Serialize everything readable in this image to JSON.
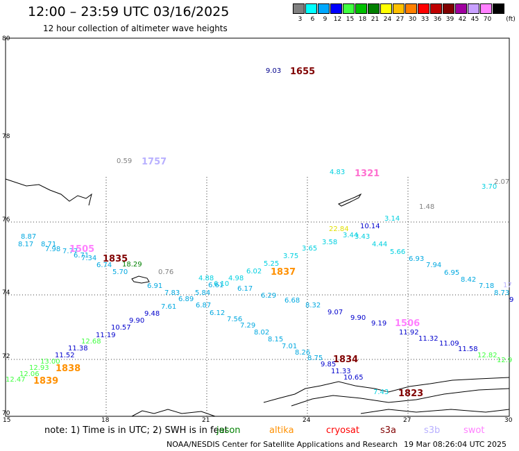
{
  "header": {
    "title": "12:00 – 23:59 UTC 03/16/2025",
    "subtitle": "12 hour collection of altimeter wave heights"
  },
  "legend": {
    "unit": "(ft)",
    "bins": [
      {
        "label": "3",
        "color": "#808080"
      },
      {
        "label": "6",
        "color": "#00ffff"
      },
      {
        "label": "9",
        "color": "#00a8ff"
      },
      {
        "label": "12",
        "color": "#0000ff"
      },
      {
        "label": "15",
        "color": "#40ff40"
      },
      {
        "label": "18",
        "color": "#00c000"
      },
      {
        "label": "21",
        "color": "#008000"
      },
      {
        "label": "24",
        "color": "#ffff00"
      },
      {
        "label": "27",
        "color": "#ffc000"
      },
      {
        "label": "30",
        "color": "#ff8000"
      },
      {
        "label": "33",
        "color": "#ff0000"
      },
      {
        "label": "36",
        "color": "#c00000"
      },
      {
        "label": "39",
        "color": "#800000"
      },
      {
        "label": "42",
        "color": "#a000a0"
      },
      {
        "label": "45",
        "color": "#c8a0ff"
      },
      {
        "label": "70",
        "color": "#ff80ff"
      },
      {
        "label": "",
        "color": "#000000"
      }
    ]
  },
  "axes": {
    "lat": [
      "80",
      "78",
      "76",
      "74",
      "72",
      "70"
    ],
    "lon": [
      "15",
      "18",
      "21",
      "24",
      "27",
      "30"
    ]
  },
  "observations": [
    {
      "t": "9.03",
      "c": "#00008b"
    },
    {
      "t": "1655",
      "c": "#800000"
    },
    {
      "t": "0.59",
      "c": "#808080"
    },
    {
      "t": "1757",
      "c": "#b8b0ff"
    },
    {
      "t": "4.83",
      "c": "#00d0e0"
    },
    {
      "t": "1321",
      "c": "#ff70d0"
    },
    {
      "t": "2.07",
      "c": "#808080"
    },
    {
      "t": "3.70",
      "c": "#00d0e0"
    },
    {
      "t": "1.48",
      "c": "#808080"
    },
    {
      "t": "3.14",
      "c": "#00d0e0"
    },
    {
      "t": "22.84",
      "c": "#e0e000"
    },
    {
      "t": "10.14",
      "c": "#0000cc"
    },
    {
      "t": "3.44",
      "c": "#00d0e0"
    },
    {
      "t": "3.43",
      "c": "#00d0e0"
    },
    {
      "t": "3.58",
      "c": "#00d0e0"
    },
    {
      "t": "4.44",
      "c": "#00d0e0"
    },
    {
      "t": "5.66",
      "c": "#00d0e0"
    },
    {
      "t": "3.65",
      "c": "#00d0e0"
    },
    {
      "t": "3.75",
      "c": "#00d0e0"
    },
    {
      "t": "6.93",
      "c": "#00a8e0"
    },
    {
      "t": "7.94",
      "c": "#00a8e0"
    },
    {
      "t": "6.95",
      "c": "#00a8e0"
    },
    {
      "t": "8.42",
      "c": "#00a8e0"
    },
    {
      "t": "7.18",
      "c": "#00a8e0"
    },
    {
      "t": "8.73",
      "c": "#00a8e0"
    },
    {
      "t": "17",
      "c": "#b8b0ff"
    },
    {
      "t": "9",
      "c": "#0000cc"
    },
    {
      "t": "8.87",
      "c": "#00a8e0"
    },
    {
      "t": "8.17",
      "c": "#00a8e0"
    },
    {
      "t": "8.71",
      "c": "#00a8e0"
    },
    {
      "t": "7.98",
      "c": "#00a8e0"
    },
    {
      "t": "7.77",
      "c": "#00a8e0"
    },
    {
      "t": "1505",
      "c": "#ff80ff"
    },
    {
      "t": "6.71",
      "c": "#00a8e0"
    },
    {
      "t": "7.34",
      "c": "#00a8e0"
    },
    {
      "t": "1835",
      "c": "#800000"
    },
    {
      "t": "6.74",
      "c": "#00a8e0"
    },
    {
      "t": "18.29",
      "c": "#008000"
    },
    {
      "t": "5.70",
      "c": "#00a8e0"
    },
    {
      "t": "0.76",
      "c": "#808080"
    },
    {
      "t": "5.25",
      "c": "#00d0e0"
    },
    {
      "t": "1837",
      "c": "#ff9000"
    },
    {
      "t": "6.02",
      "c": "#00d0e0"
    },
    {
      "t": "4.88",
      "c": "#00d0e0"
    },
    {
      "t": "4.98",
      "c": "#00d0e0"
    },
    {
      "t": "6.10",
      "c": "#00d0e0"
    },
    {
      "t": "6.61",
      "c": "#00a8e0"
    },
    {
      "t": "6.91",
      "c": "#00a8e0"
    },
    {
      "t": "6.17",
      "c": "#00a8e0"
    },
    {
      "t": "7.83",
      "c": "#00a8e0"
    },
    {
      "t": "5.84",
      "c": "#00a8e0"
    },
    {
      "t": "6.29",
      "c": "#00a8e0"
    },
    {
      "t": "6.89",
      "c": "#00a8e0"
    },
    {
      "t": "6.87",
      "c": "#00a8e0"
    },
    {
      "t": "6.68",
      "c": "#00a8e0"
    },
    {
      "t": "8.32",
      "c": "#00a8e0"
    },
    {
      "t": "7.61",
      "c": "#00a8e0"
    },
    {
      "t": "9.48",
      "c": "#0000cc"
    },
    {
      "t": "9.90",
      "c": "#0000cc"
    },
    {
      "t": "10.57",
      "c": "#0000cc"
    },
    {
      "t": "11.19",
      "c": "#0000cc"
    },
    {
      "t": "11.38",
      "c": "#0000cc"
    },
    {
      "t": "11.52",
      "c": "#0000cc"
    },
    {
      "t": "12.68",
      "c": "#40ff40"
    },
    {
      "t": "13.00",
      "c": "#40ff40"
    },
    {
      "t": "12.93",
      "c": "#40ff40"
    },
    {
      "t": "12.06",
      "c": "#40ff40"
    },
    {
      "t": "12.47",
      "c": "#40ff40"
    },
    {
      "t": "1838",
      "c": "#ff9000"
    },
    {
      "t": "1839",
      "c": "#ff9000"
    },
    {
      "t": "6.12",
      "c": "#00a8e0"
    },
    {
      "t": "7.56",
      "c": "#00a8e0"
    },
    {
      "t": "7.29",
      "c": "#00a8e0"
    },
    {
      "t": "8.02",
      "c": "#00a8e0"
    },
    {
      "t": "8.15",
      "c": "#00a8e0"
    },
    {
      "t": "7.01",
      "c": "#00a8e0"
    },
    {
      "t": "8.26",
      "c": "#00a8e0"
    },
    {
      "t": "8.75",
      "c": "#00a8e0"
    },
    {
      "t": "1834",
      "c": "#800000"
    },
    {
      "t": "9.85",
      "c": "#0000cc"
    },
    {
      "t": "11.33",
      "c": "#0000cc"
    },
    {
      "t": "10.65",
      "c": "#0000cc"
    },
    {
      "t": "9.07",
      "c": "#0000cc"
    },
    {
      "t": "9.90",
      "c": "#0000cc"
    },
    {
      "t": "9.19",
      "c": "#0000cc"
    },
    {
      "t": "1506",
      "c": "#ff80ff"
    },
    {
      "t": "11.92",
      "c": "#0000cc"
    },
    {
      "t": "11.32",
      "c": "#0000cc"
    },
    {
      "t": "11.09",
      "c": "#0000cc"
    },
    {
      "t": "11.58",
      "c": "#0000cc"
    },
    {
      "t": "12.82",
      "c": "#40ff40"
    },
    {
      "t": "12.9",
      "c": "#40ff40"
    },
    {
      "t": "7.43",
      "c": "#00d0e0"
    },
    {
      "t": "1823",
      "c": "#800000"
    }
  ],
  "note": {
    "text": "note:  1) Time is in UTC; 2) SWH is in feet",
    "sats": [
      {
        "t": "jason",
        "c": "#008000"
      },
      {
        "t": "altika",
        "c": "#ff9000"
      },
      {
        "t": "cryosat",
        "c": "#ff0000"
      },
      {
        "t": "s3a",
        "c": "#800000"
      },
      {
        "t": "s3b",
        "c": "#b8b0ff"
      },
      {
        "t": "swot",
        "c": "#ff80ff"
      }
    ]
  },
  "footer": {
    "left": "NOAA/NESDIS Center for Satellite Applications and Research",
    "right": "19 Mar 08:26:04 UTC 2025"
  }
}
